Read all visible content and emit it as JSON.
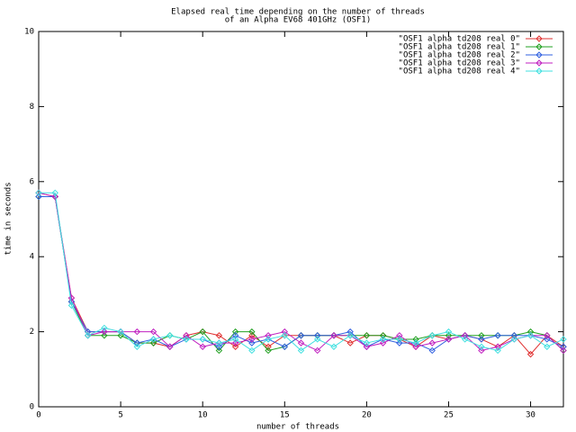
{
  "chart_data": {
    "type": "line",
    "title": "Elapsed real time depending on the number of threads",
    "subtitle": "of an Alpha EV68 401GHz  (OSF1)",
    "x_label": "number of threads",
    "y_label": "time in seconds",
    "x": [
      0,
      1,
      2,
      3,
      4,
      5,
      6,
      7,
      8,
      9,
      10,
      11,
      12,
      13,
      14,
      15,
      16,
      17,
      18,
      19,
      20,
      21,
      22,
      23,
      24,
      25,
      26,
      27,
      28,
      29,
      30,
      31,
      32
    ],
    "xlim": [
      0,
      32
    ],
    "ylim": [
      0,
      10
    ],
    "xticks": [
      0,
      5,
      10,
      15,
      20,
      25,
      30
    ],
    "yticks": [
      0,
      2,
      4,
      6,
      8,
      10
    ],
    "legend": "top-right",
    "series": [
      {
        "name": "\"OSF1 alpha td208 real 0\"",
        "color": "#e03030",
        "values": [
          5.7,
          5.6,
          2.9,
          2.0,
          2.0,
          2.0,
          1.7,
          1.7,
          1.6,
          1.9,
          2.0,
          1.9,
          1.6,
          1.9,
          1.6,
          1.9,
          1.9,
          1.9,
          1.9,
          1.7,
          1.9,
          1.9,
          1.8,
          1.6,
          1.9,
          1.8,
          1.9,
          1.8,
          1.6,
          1.9,
          1.4,
          1.9,
          1.6
        ]
      },
      {
        "name": "\"OSF1 alpha td208 real 1\"",
        "color": "#20a020",
        "values": [
          5.6,
          5.6,
          2.8,
          1.9,
          1.9,
          1.9,
          1.7,
          1.7,
          1.9,
          1.8,
          2.0,
          1.5,
          2.0,
          2.0,
          1.5,
          1.6,
          1.9,
          1.9,
          1.9,
          1.9,
          1.9,
          1.9,
          1.8,
          1.8,
          1.9,
          1.9,
          1.9,
          1.9,
          1.9,
          1.9,
          2.0,
          1.9,
          1.5
        ]
      },
      {
        "name": "\"OSF1 alpha td208 real 2\"",
        "color": "#3060e0",
        "values": [
          5.6,
          5.6,
          2.8,
          2.0,
          2.0,
          2.0,
          1.7,
          1.8,
          1.6,
          1.8,
          1.8,
          1.6,
          1.9,
          1.7,
          1.8,
          1.6,
          1.9,
          1.9,
          1.9,
          2.0,
          1.6,
          1.8,
          1.7,
          1.7,
          1.5,
          1.8,
          1.9,
          1.8,
          1.9,
          1.9,
          1.9,
          1.8,
          1.6
        ]
      },
      {
        "name": "\"OSF1 alpha td208 real 3\"",
        "color": "#c020c0",
        "values": [
          5.7,
          5.6,
          2.9,
          1.9,
          2.0,
          2.0,
          2.0,
          2.0,
          1.6,
          1.9,
          1.6,
          1.7,
          1.7,
          1.8,
          1.9,
          2.0,
          1.7,
          1.5,
          1.9,
          1.9,
          1.6,
          1.7,
          1.9,
          1.6,
          1.7,
          1.8,
          1.9,
          1.5,
          1.6,
          1.8,
          1.9,
          1.9,
          1.5
        ]
      },
      {
        "name": "\"OSF1 alpha td208 real 4\"",
        "color": "#40e0e0",
        "values": [
          5.7,
          5.7,
          2.7,
          1.9,
          2.1,
          2.0,
          1.6,
          1.8,
          1.9,
          1.8,
          1.8,
          1.7,
          1.8,
          1.5,
          1.8,
          1.9,
          1.5,
          1.8,
          1.6,
          1.9,
          1.7,
          1.8,
          1.8,
          1.7,
          1.9,
          2.0,
          1.8,
          1.6,
          1.5,
          1.8,
          1.9,
          1.6,
          1.8
        ]
      }
    ]
  }
}
